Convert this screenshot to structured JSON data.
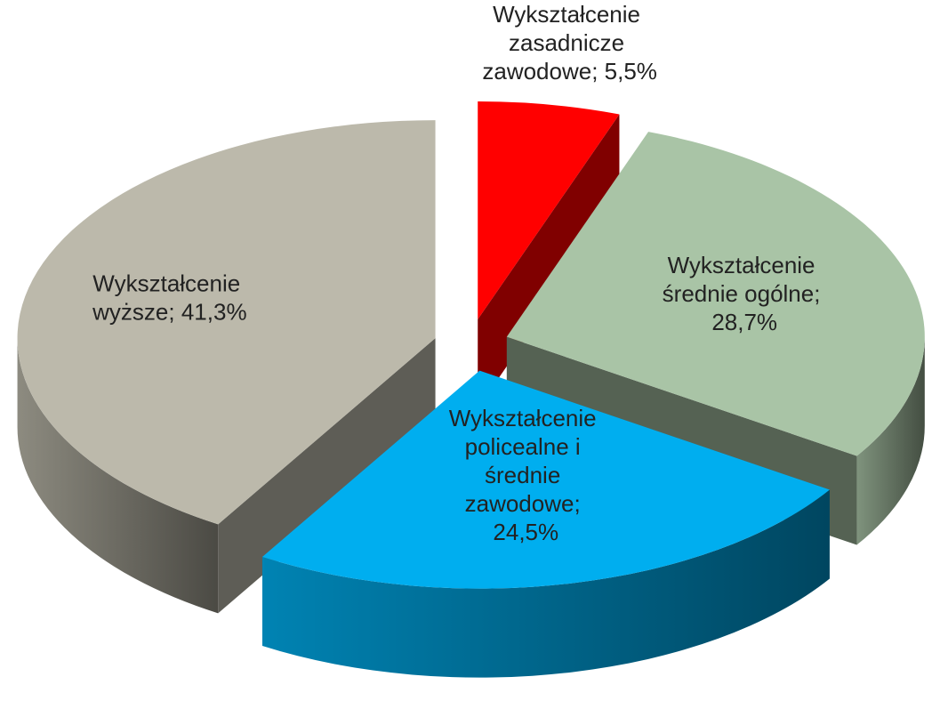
{
  "chart_data": {
    "type": "pie",
    "categories": [
      "Wykształcenie zasadnicze zawodowe",
      "Wykształcenie średnie ogólne",
      "Wykształcenie policealne i średnie zawodowe",
      "Wykształcenie wyższe"
    ],
    "values": [
      5.5,
      28.7,
      24.5,
      41.3
    ],
    "value_labels": [
      "Wykształcenie zasadnicze zawodowe; 5,5%",
      "Wykształcenie średnie ogólne; 28,7%",
      "Wykształcenie policealne i średnie zawodowe; 24,5%",
      "Wykształcenie wyższe; 41,3%"
    ],
    "colors": [
      "#ff0000",
      "#a9c4a6",
      "#00aeef",
      "#bcb9ab"
    ]
  }
}
